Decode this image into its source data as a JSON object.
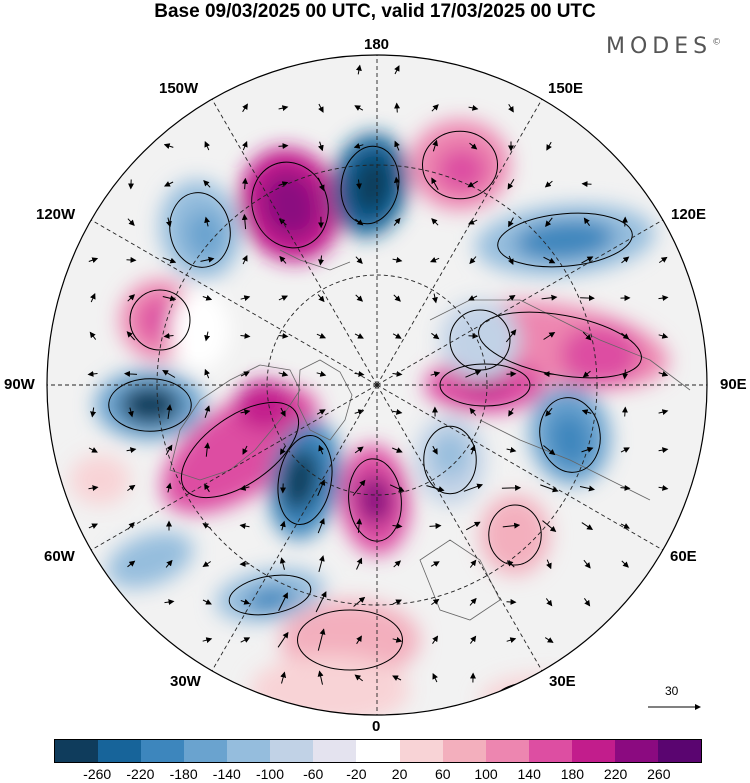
{
  "title": "Base 09/03/2025 00 UTC, valid 17/03/2025 00 UTC",
  "brand": "MODES",
  "brand_mark": "©",
  "longitude_labels": {
    "top": "180",
    "bottom": "0",
    "left": "90W",
    "right": "90E",
    "upper_left_1": "150W",
    "upper_left_2": "120W",
    "lower_left_1": "60W",
    "lower_left_2": "30W",
    "upper_right_1": "150E",
    "upper_right_2": "120E",
    "lower_right_1": "60E",
    "lower_right_2": "30E"
  },
  "reference_vector": "30",
  "colorbar": {
    "colors": [
      "#0f3c5c",
      "#17649a",
      "#3d86bd",
      "#6aa3cf",
      "#95bddd",
      "#c1d2e6",
      "#e4e3ef",
      "#ffffff",
      "#f8d3d6",
      "#f3afbd",
      "#ed86b0",
      "#dd4ea2",
      "#c21d8c",
      "#8b0a80",
      "#5a0570"
    ],
    "ticks": [
      "-260",
      "-220",
      "-180",
      "-140",
      "-100",
      "-60",
      "-20",
      "20",
      "60",
      "100",
      "140",
      "180",
      "220",
      "260"
    ]
  },
  "map_colors": {
    "background": "#f2f2f2",
    "land_outline": "#666666",
    "contour": "#000000"
  }
}
